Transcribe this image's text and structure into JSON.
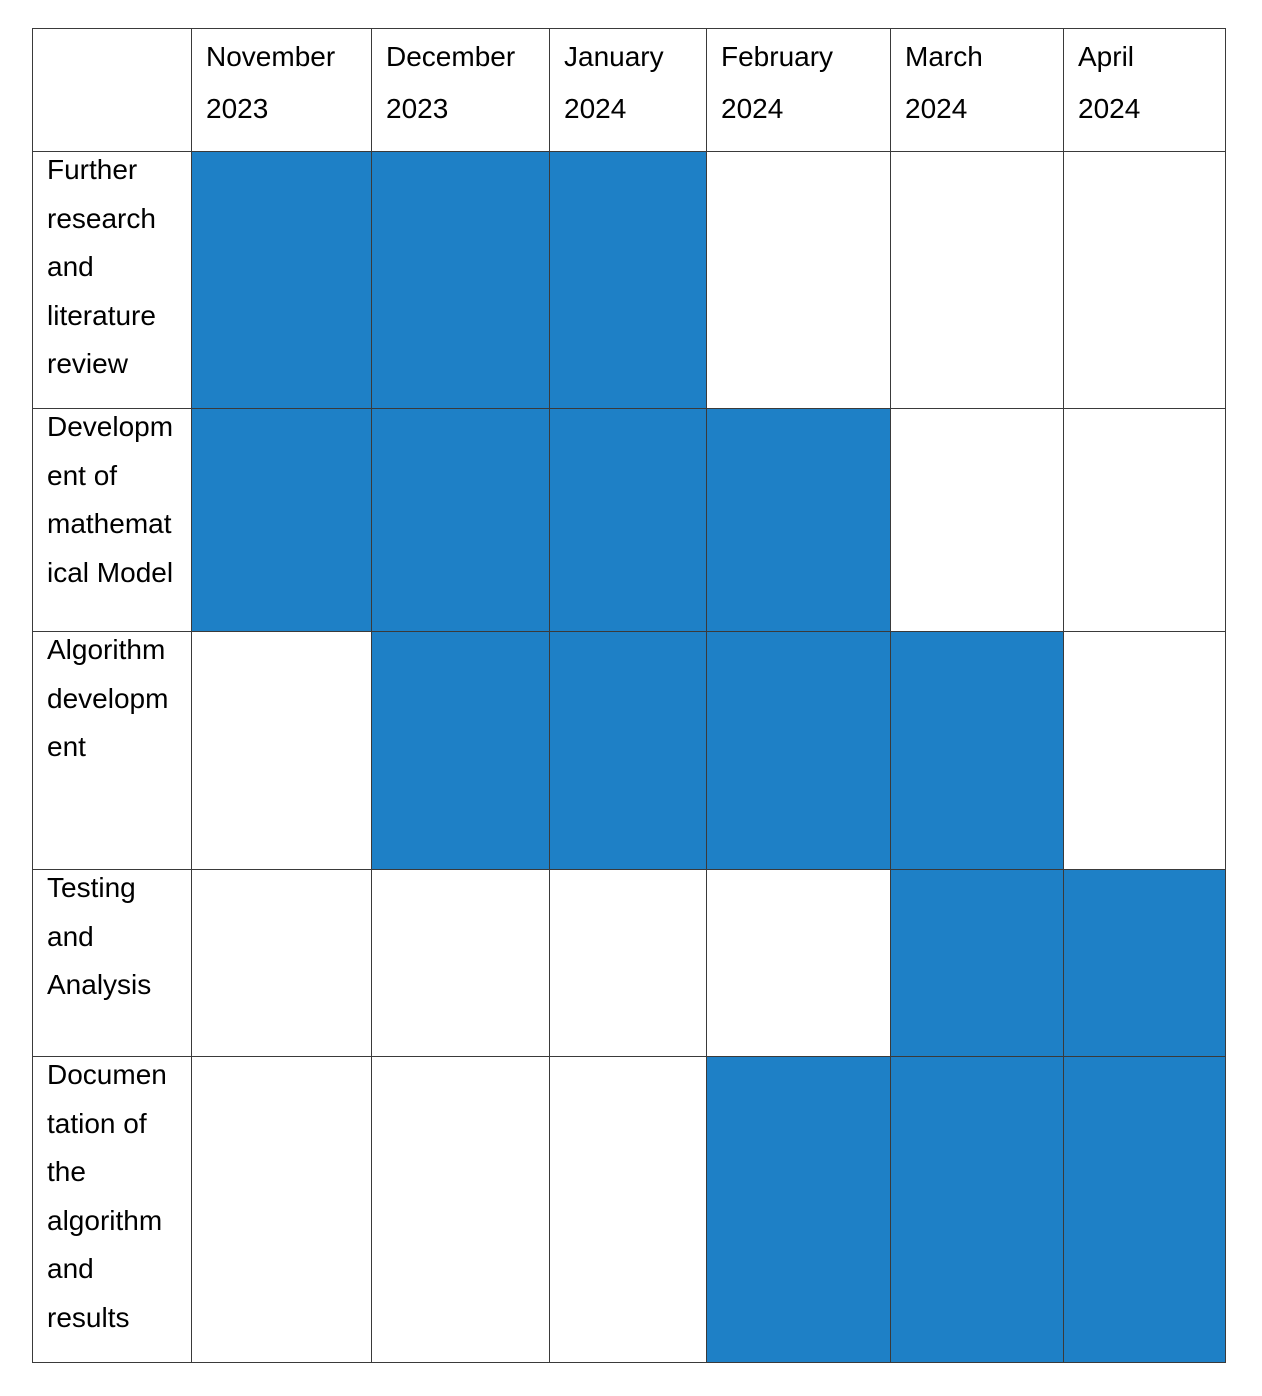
{
  "chart_data": {
    "type": "table",
    "title": "",
    "months": [
      "November\n2023",
      "December\n2023",
      "January\n2024",
      "February\n2024",
      "March\n2024",
      "April\n2024"
    ],
    "tasks": [
      {
        "name": "Further\nresearch\nand\nliterature\nreview",
        "active_months": [
          true,
          true,
          true,
          false,
          false,
          false
        ]
      },
      {
        "name": "Developm\nent of\nmathemat\nical Model",
        "active_months": [
          true,
          true,
          true,
          true,
          false,
          false
        ]
      },
      {
        "name": "Algorithm\ndevelopm\nent",
        "active_months": [
          false,
          true,
          true,
          true,
          true,
          false
        ]
      },
      {
        "name": "Testing\nand\nAnalysis",
        "active_months": [
          false,
          false,
          false,
          false,
          true,
          true
        ]
      },
      {
        "name": "Documen\ntation of\nthe\nalgorithm\nand\nresults",
        "active_months": [
          false,
          false,
          false,
          true,
          true,
          true
        ]
      }
    ],
    "fill_color": "#1e80c6",
    "empty_color": "#ffffff",
    "border_color": "#3a3a3a"
  }
}
